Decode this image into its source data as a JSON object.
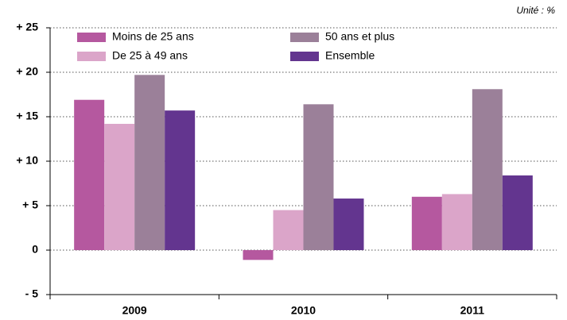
{
  "chart_data": {
    "type": "bar",
    "note": "Unité : %",
    "categories": [
      "2009",
      "2010",
      "2011"
    ],
    "series": [
      {
        "name": "Moins de 25 ans",
        "color": "#b5589f",
        "values": [
          16.9,
          -1.1,
          6.0
        ]
      },
      {
        "name": "De 25 à 49 ans",
        "color": "#dba5c9",
        "values": [
          14.2,
          4.5,
          6.3
        ]
      },
      {
        "name": "50 ans et plus",
        "color": "#9b8099",
        "values": [
          19.7,
          16.4,
          18.1
        ]
      },
      {
        "name": "Ensemble",
        "color": "#63358f",
        "values": [
          15.7,
          5.8,
          8.4
        ]
      }
    ],
    "ylim": [
      -5,
      25
    ],
    "yticks": [
      {
        "value": -5,
        "label": "- 5"
      },
      0,
      {
        "value": 5,
        "label": "+ 5"
      },
      {
        "value": 10,
        "label": "+ 10"
      },
      {
        "value": 15,
        "label": "+ 15"
      },
      {
        "value": 20,
        "label": "+ 20"
      },
      {
        "value": 25,
        "label": "+ 25"
      }
    ],
    "grid": true
  }
}
